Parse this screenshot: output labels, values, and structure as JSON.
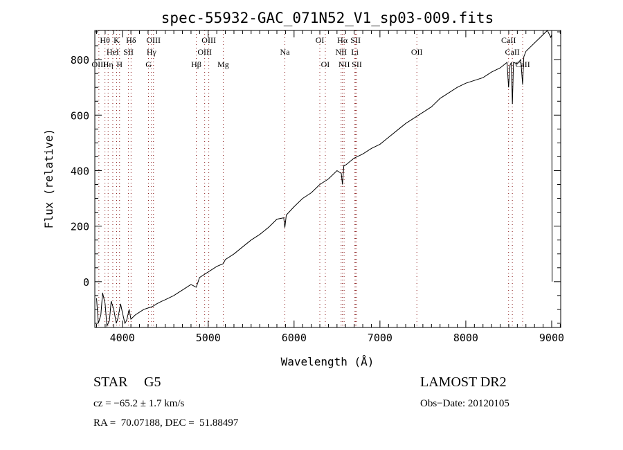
{
  "chart_data": {
    "type": "line",
    "title": "spec-55932-GAC_071N52_V1_sp03-009.fits",
    "xlabel": "Wavelength (Å)",
    "ylabel": "Flux (relative)",
    "xlim": [
      3680,
      9105
    ],
    "ylim": [
      -165,
      905
    ],
    "x_ticks": [
      4000,
      5000,
      6000,
      7000,
      8000,
      9000
    ],
    "y_ticks": [
      0,
      200,
      400,
      600,
      800
    ],
    "grid": false,
    "series": [
      {
        "name": "spectrum",
        "points": [
          [
            3700,
            -60
          ],
          [
            3720,
            -150
          ],
          [
            3750,
            -120
          ],
          [
            3770,
            -40
          ],
          [
            3800,
            -80
          ],
          [
            3820,
            -160
          ],
          [
            3850,
            -140
          ],
          [
            3870,
            -70
          ],
          [
            3900,
            -100
          ],
          [
            3930,
            -150
          ],
          [
            3950,
            -130
          ],
          [
            3980,
            -80
          ],
          [
            4000,
            -110
          ],
          [
            4030,
            -150
          ],
          [
            4050,
            -140
          ],
          [
            4080,
            -100
          ],
          [
            4100,
            -135
          ],
          [
            4150,
            -120
          ],
          [
            4200,
            -110
          ],
          [
            4250,
            -100
          ],
          [
            4300,
            -95
          ],
          [
            4350,
            -90
          ],
          [
            4400,
            -80
          ],
          [
            4450,
            -72
          ],
          [
            4500,
            -65
          ],
          [
            4600,
            -50
          ],
          [
            4700,
            -30
          ],
          [
            4800,
            -10
          ],
          [
            4861,
            -20
          ],
          [
            4900,
            15
          ],
          [
            5000,
            35
          ],
          [
            5100,
            55
          ],
          [
            5175,
            65
          ],
          [
            5200,
            80
          ],
          [
            5300,
            100
          ],
          [
            5400,
            125
          ],
          [
            5500,
            150
          ],
          [
            5600,
            170
          ],
          [
            5700,
            195
          ],
          [
            5800,
            225
          ],
          [
            5880,
            230
          ],
          [
            5893,
            195
          ],
          [
            5910,
            240
          ],
          [
            6000,
            270
          ],
          [
            6100,
            300
          ],
          [
            6200,
            320
          ],
          [
            6300,
            350
          ],
          [
            6400,
            370
          ],
          [
            6500,
            400
          ],
          [
            6550,
            390
          ],
          [
            6563,
            350
          ],
          [
            6580,
            420
          ],
          [
            6600,
            420
          ],
          [
            6700,
            445
          ],
          [
            6800,
            460
          ],
          [
            6900,
            480
          ],
          [
            7000,
            495
          ],
          [
            7100,
            520
          ],
          [
            7200,
            545
          ],
          [
            7300,
            570
          ],
          [
            7400,
            590
          ],
          [
            7500,
            610
          ],
          [
            7600,
            630
          ],
          [
            7700,
            660
          ],
          [
            7800,
            680
          ],
          [
            7900,
            700
          ],
          [
            8000,
            715
          ],
          [
            8100,
            725
          ],
          [
            8200,
            735
          ],
          [
            8300,
            755
          ],
          [
            8400,
            770
          ],
          [
            8480,
            790
          ],
          [
            8498,
            700
          ],
          [
            8515,
            780
          ],
          [
            8530,
            790
          ],
          [
            8542,
            640
          ],
          [
            8555,
            790
          ],
          [
            8600,
            785
          ],
          [
            8640,
            800
          ],
          [
            8662,
            710
          ],
          [
            8675,
            810
          ],
          [
            8700,
            830
          ],
          [
            8800,
            860
          ],
          [
            8900,
            890
          ],
          [
            8950,
            905
          ],
          [
            8990,
            880
          ],
          [
            9000,
            890
          ],
          [
            9005,
            0
          ]
        ]
      }
    ],
    "line_markers": [
      {
        "label": "Hθ",
        "wl": 3798,
        "row": 0
      },
      {
        "label": "K",
        "wl": 3934,
        "row": 0
      },
      {
        "label": "Hδ",
        "wl": 4102,
        "row": 0
      },
      {
        "label": "OIII",
        "wl": 4363,
        "row": 0
      },
      {
        "label": "HeI",
        "wl": 3889,
        "row": 1
      },
      {
        "label": "SII",
        "wl": 4072,
        "row": 1
      },
      {
        "label": "Hγ",
        "wl": 4340,
        "row": 1
      },
      {
        "label": "OIII",
        "wl": 3727,
        "row": 2
      },
      {
        "label": "Hη",
        "wl": 3835,
        "row": 2
      },
      {
        "label": "H",
        "wl": 3968,
        "row": 2
      },
      {
        "label": "G",
        "wl": 4305,
        "row": 2
      },
      {
        "label": "OIII",
        "wl": 5007,
        "row": 0
      },
      {
        "label": "OIII",
        "wl": 4959,
        "row": 1
      },
      {
        "label": "Hβ",
        "wl": 4861,
        "row": 2
      },
      {
        "label": "Mg",
        "wl": 5175,
        "row": 2
      },
      {
        "label": "Na",
        "wl": 5893,
        "row": 1
      },
      {
        "label": "OI",
        "wl": 6300,
        "row": 0
      },
      {
        "label": "OI",
        "wl": 6364,
        "row": 2
      },
      {
        "label": "Hα",
        "wl": 6563,
        "row": 0
      },
      {
        "label": "SII",
        "wl": 6716,
        "row": 0
      },
      {
        "label": "NII",
        "wl": 6548,
        "row": 1
      },
      {
        "label": "Li",
        "wl": 6708,
        "row": 1
      },
      {
        "label": "NII",
        "wl": 6583,
        "row": 2
      },
      {
        "label": "SII",
        "wl": 6731,
        "row": 2
      },
      {
        "label": "OII",
        "wl": 7430,
        "row": 1
      },
      {
        "label": "CaII",
        "wl": 8498,
        "row": 0
      },
      {
        "label": "CaII",
        "wl": 8542,
        "row": 1
      },
      {
        "label": "CaII",
        "wl": 8662,
        "row": 2
      }
    ]
  },
  "info": {
    "object_class": "STAR",
    "subclass": "G5",
    "survey": "LAMOST DR2",
    "cz": "cz = −65.2 ± 1.7 km/s",
    "obs_date": "Obs−Date: 20120105",
    "coords": "RA =  70.07188, DEC =  51.88497"
  }
}
